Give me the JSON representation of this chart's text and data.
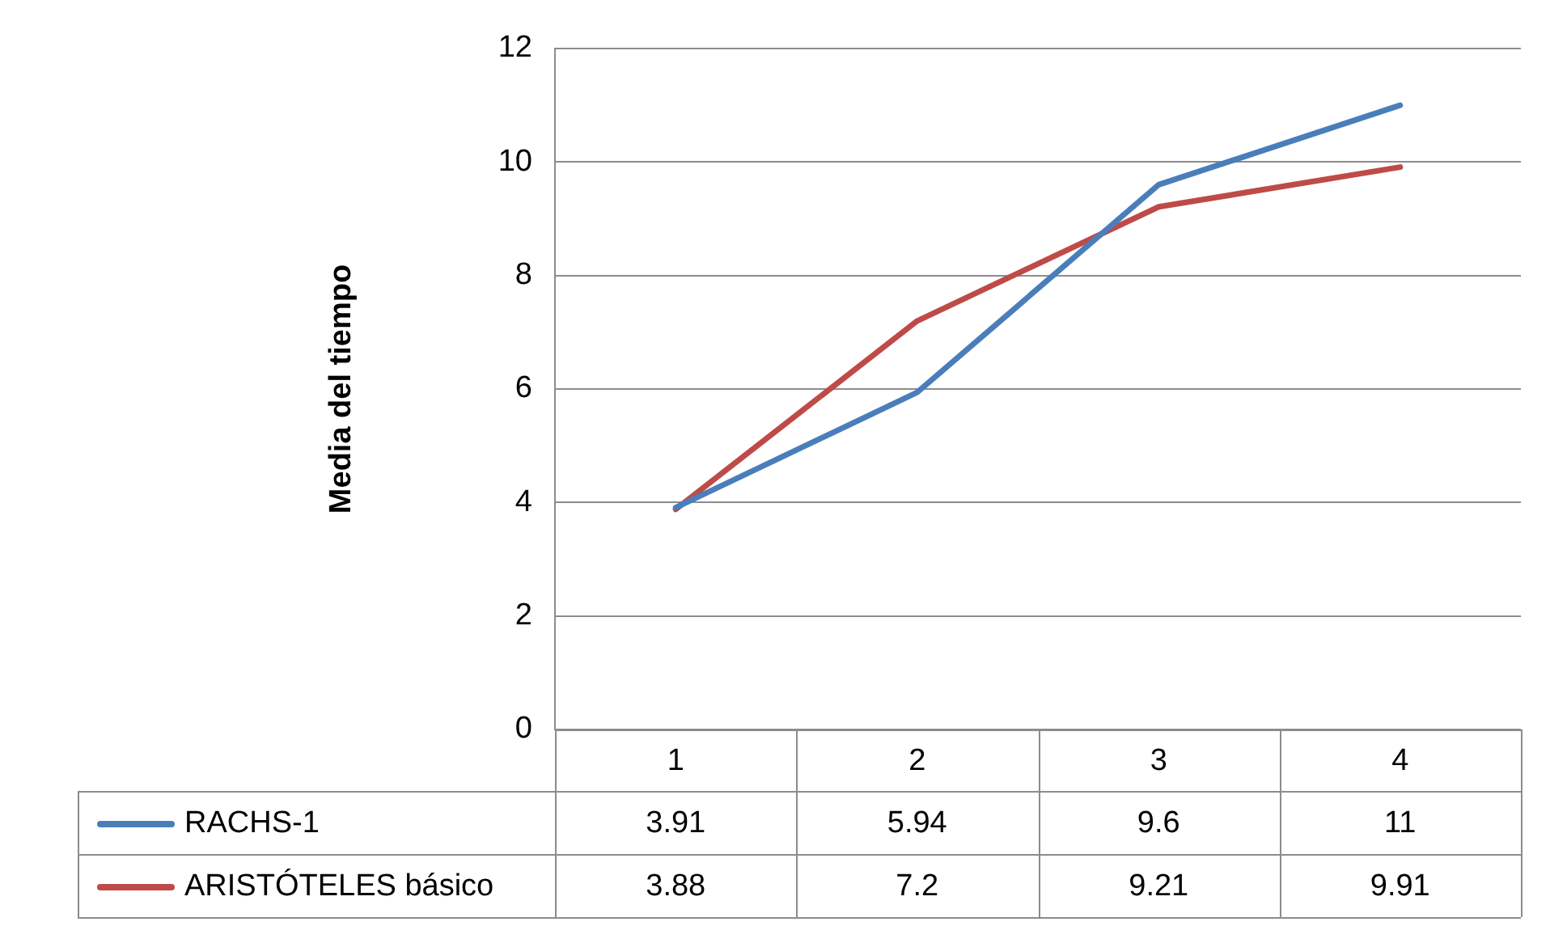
{
  "chart_data": {
    "type": "line",
    "ylabel": "Media del tiempo",
    "categories": [
      "1",
      "2",
      "3",
      "4"
    ],
    "series": [
      {
        "name": "RACHS-1",
        "color": "#4a7ebb",
        "values": [
          3.91,
          5.94,
          9.6,
          11
        ]
      },
      {
        "name": "ARISTÓTELES básico",
        "color": "#be4b48",
        "values": [
          3.88,
          7.2,
          9.21,
          9.91
        ]
      }
    ],
    "ylim": [
      0,
      12
    ],
    "yticks": [
      0,
      2,
      4,
      6,
      8,
      10,
      12
    ],
    "grid": "y",
    "legend": "bottom",
    "data_labels": true,
    "marker": "none"
  }
}
